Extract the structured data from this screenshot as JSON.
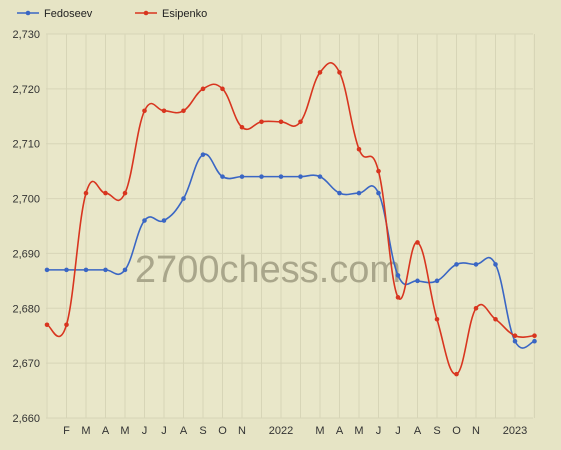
{
  "watermark": "2700chess.com",
  "colors": {
    "background": "#e6e4c5",
    "plot_background": "#e9e7c9",
    "grid": "#d7d5b7",
    "axis_text": "#333333",
    "watermark": "#a9a68b"
  },
  "chart_data": {
    "type": "line",
    "legend_position": "top-left",
    "grid": true,
    "ylim": [
      2660,
      2730
    ],
    "yticks": [
      2660,
      2670,
      2680,
      2690,
      2700,
      2710,
      2720,
      2730
    ],
    "ytick_labels": [
      "2,660",
      "2,670",
      "2,680",
      "2,690",
      "2,700",
      "2,710",
      "2,720",
      "2,730"
    ],
    "x": [
      "2021-01",
      "2021-02",
      "2021-03",
      "2021-04",
      "2021-05",
      "2021-06",
      "2021-07",
      "2021-08",
      "2021-09",
      "2021-10",
      "2021-11",
      "2021-12",
      "2022-01",
      "2022-02",
      "2022-03",
      "2022-04",
      "2022-05",
      "2022-06",
      "2022-07",
      "2022-08",
      "2022-09",
      "2022-10",
      "2022-11",
      "2022-12",
      "2023-01",
      "2023-02"
    ],
    "xtick_labels": [
      "",
      "F",
      "M",
      "A",
      "M",
      "J",
      "J",
      "A",
      "S",
      "O",
      "N",
      "",
      "2022",
      "",
      "M",
      "A",
      "M",
      "J",
      "J",
      "A",
      "S",
      "O",
      "N",
      "",
      "2023",
      ""
    ],
    "series": [
      {
        "name": "Fedoseev",
        "color": "#3a66c4",
        "values": [
          2687,
          2687,
          2687,
          2687,
          2687,
          2696,
          2696,
          2700,
          2708,
          2704,
          2704,
          2704,
          2704,
          2704,
          2704,
          2701,
          2701,
          2701,
          2686,
          2685,
          2685,
          2688,
          2688,
          2688,
          2674,
          2674
        ]
      },
      {
        "name": "Esipenko",
        "color": "#d8351f",
        "values": [
          2677,
          2677,
          2701,
          2701,
          2701,
          2716,
          2716,
          2716,
          2720,
          2720,
          2713,
          2714,
          2714,
          2714,
          2723,
          2723,
          2709,
          2705,
          2682,
          2692,
          2678,
          2668,
          2680,
          2678,
          2675,
          2675
        ]
      }
    ]
  }
}
